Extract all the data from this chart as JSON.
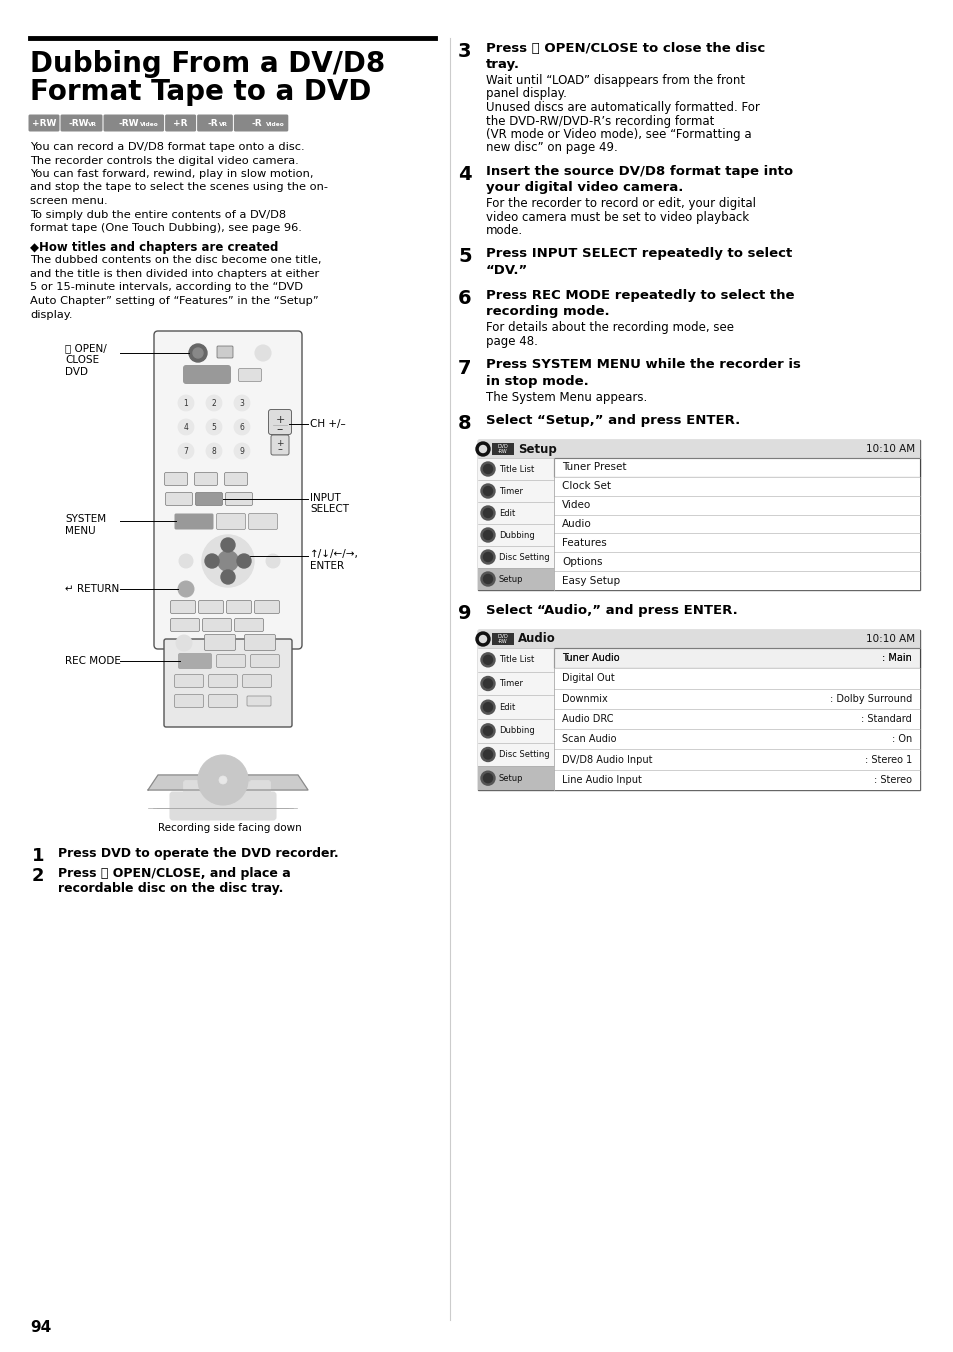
{
  "page_num": "94",
  "bg_color": "#ffffff",
  "title_line1": "Dubbing From a DV/D8",
  "title_line2": "Format Tape to a DVD",
  "badge_labels": [
    "+RW",
    "-RWVR",
    "-RWVideo",
    "+R",
    "-RVR",
    "-RVideo"
  ],
  "body_text_left": [
    "You can record a DV/D8 format tape onto a disc.",
    "The recorder controls the digital video camera.",
    "You can fast forward, rewind, play in slow motion,",
    "and stop the tape to select the scenes using the on-",
    "screen menu.",
    "To simply dub the entire contents of a DV/D8",
    "format tape (One Touch Dubbing), see page 96."
  ],
  "subhead": "◆How titles and chapters are created",
  "subhead_text": [
    "The dubbed contents on the disc become one title,",
    "and the title is then divided into chapters at either",
    "5 or 15-minute intervals, according to the “DVD",
    "Auto Chapter” setting of “Features” in the “Setup”",
    "display."
  ],
  "steps_right": [
    {
      "num": "3",
      "bold_lines": [
        "Press ⤒ OPEN/CLOSE to close the disc",
        "tray."
      ],
      "normal_lines": [
        "Wait until “LOAD” disappears from the front",
        "panel display.",
        "Unused discs are automatically formatted. For",
        "the DVD-RW/DVD-R’s recording format",
        "(VR mode or Video mode), see “Formatting a",
        "new disc” on page 49."
      ]
    },
    {
      "num": "4",
      "bold_lines": [
        "Insert the source DV/D8 format tape into",
        "your digital video camera."
      ],
      "normal_lines": [
        "For the recorder to record or edit, your digital",
        "video camera must be set to video playback",
        "mode."
      ]
    },
    {
      "num": "5",
      "bold_lines": [
        "Press INPUT SELECT repeatedly to select",
        "“DV.”"
      ],
      "normal_lines": []
    },
    {
      "num": "6",
      "bold_lines": [
        "Press REC MODE repeatedly to select the",
        "recording mode."
      ],
      "normal_lines": [
        "For details about the recording mode, see",
        "page 48."
      ]
    },
    {
      "num": "7",
      "bold_lines": [
        "Press SYSTEM MENU while the recorder is",
        "in stop mode."
      ],
      "normal_lines": [
        "The System Menu appears."
      ]
    },
    {
      "num": "8",
      "bold_lines": [
        "Select “Setup,” and press ENTER."
      ],
      "normal_lines": []
    },
    {
      "num": "9",
      "bold_lines": [
        "Select “Audio,” and press ENTER."
      ],
      "normal_lines": []
    }
  ],
  "steps_left_bottom": [
    {
      "num": "1",
      "bold_lines": [
        "Press DVD to operate the DVD recorder."
      ],
      "normal_lines": []
    },
    {
      "num": "2",
      "bold_lines": [
        "Press ⤒ OPEN/CLOSE, and place a",
        "recordable disc on the disc tray."
      ],
      "normal_lines": []
    }
  ],
  "caption": "Recording side facing down",
  "menu_setup_title": "Setup",
  "menu_setup_time": "10:10 AM",
  "menu_left_items": [
    "Title List",
    "Timer",
    "Edit",
    "Dubbing",
    "Disc Setting",
    "Setup"
  ],
  "menu_setup_options": [
    "Tuner Preset",
    "Clock Set",
    "Video",
    "Audio",
    "Features",
    "Options",
    "Easy Setup"
  ],
  "menu_audio_title": "Audio",
  "menu_audio_time": "10:10 AM",
  "menu_audio_rows": [
    [
      "Tuner Audio",
      ": Main"
    ],
    [
      "Digital Out",
      ""
    ],
    [
      "Downmix",
      ": Dolby Surround"
    ],
    [
      "Audio DRC",
      ": Standard"
    ],
    [
      "Scan Audio",
      ": On"
    ],
    [
      "DV/D8 Audio Input",
      ": Stereo 1"
    ],
    [
      "Line Audio Input",
      ": Stereo"
    ]
  ]
}
